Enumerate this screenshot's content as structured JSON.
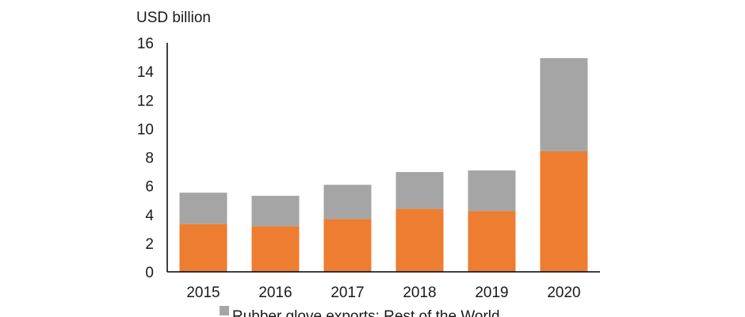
{
  "chart_data": {
    "type": "bar",
    "stacked": true,
    "ylabel": "USD billion",
    "ylim": [
      0,
      16
    ],
    "yticks": [
      0,
      2,
      4,
      6,
      8,
      10,
      12,
      14,
      16
    ],
    "categories": [
      "2015",
      "2016",
      "2017",
      "2018",
      "2019",
      "2020"
    ],
    "series": [
      {
        "name": "",
        "color": "#ED7D31",
        "values": [
          3.34,
          3.19,
          3.69,
          4.41,
          4.24,
          8.42
        ]
      },
      {
        "name": "Rubber glove exports: Rest of the World",
        "color": "#A5A5A5",
        "values": [
          2.19,
          2.12,
          2.39,
          2.56,
          2.84,
          6.51
        ]
      }
    ],
    "legend": {
      "placement": "bottom",
      "visible_entries": [
        "Rubber glove exports: Rest of the World"
      ]
    },
    "grid": false
  }
}
